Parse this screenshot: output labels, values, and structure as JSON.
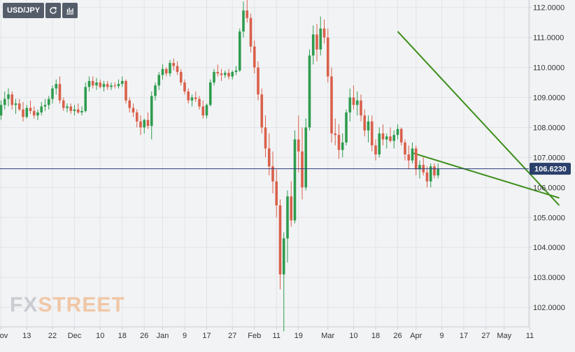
{
  "toolbar": {
    "symbol": "USD/JPY",
    "reload_icon": "reload-icon",
    "indicators_icon": "bar-chart-icon"
  },
  "watermark": {
    "part1": "FX",
    "part2": "STREET"
  },
  "chart_data": {
    "type": "candlestick",
    "symbol": "USD/JPY",
    "ylim": [
      101.35,
      112.25
    ],
    "y_ticks": [
      102,
      103,
      104,
      105,
      106,
      107,
      108,
      109,
      110,
      111,
      112
    ],
    "y_tick_labels": [
      "102.0000",
      "103.0000",
      "104.0000",
      "105.0000",
      "106.0000",
      "107.0000",
      "108.0000",
      "109.0000",
      "110.0000",
      "111.0000",
      "112.0000"
    ],
    "x_labels": [
      {
        "label": "Nov",
        "index": 0
      },
      {
        "label": "13",
        "index": 7
      },
      {
        "label": "22",
        "index": 14
      },
      {
        "label": "Dec",
        "index": 20
      },
      {
        "label": "10",
        "index": 27
      },
      {
        "label": "18",
        "index": 33
      },
      {
        "label": "26",
        "index": 39
      },
      {
        "label": "Jan",
        "index": 44
      },
      {
        "label": "9",
        "index": 50
      },
      {
        "label": "17",
        "index": 56
      },
      {
        "label": "27",
        "index": 63
      },
      {
        "label": "Feb",
        "index": 69
      },
      {
        "label": "11",
        "index": 75
      },
      {
        "label": "19",
        "index": 81
      },
      {
        "label": "Mar",
        "index": 89
      },
      {
        "label": "10",
        "index": 96
      },
      {
        "label": "18",
        "index": 102
      },
      {
        "label": "26",
        "index": 108
      },
      {
        "label": "Apr",
        "index": 113
      },
      {
        "label": "9",
        "index": 120
      },
      {
        "label": "17",
        "index": 126
      },
      {
        "label": "27",
        "index": 132
      },
      {
        "label": "May",
        "index": 137
      },
      {
        "label": "11",
        "index": 144
      }
    ],
    "current_price": 106.623,
    "current_price_label": "106.6230",
    "colors": {
      "up": "#2e9c4f",
      "down": "#d9604b",
      "trendline": "#3d8f1a",
      "price_line": "#2a3a7a",
      "price_tag": "#2a3f6a"
    },
    "trendlines": [
      {
        "from": [
          108,
          111.2
        ],
        "to": [
          152,
          105.4
        ]
      },
      {
        "from": [
          112,
          107.15
        ],
        "to": [
          152,
          105.65
        ]
      }
    ],
    "candles": [
      [
        108.4,
        108.9,
        108.25,
        108.75
      ],
      [
        108.75,
        109.2,
        108.6,
        108.95
      ],
      [
        108.95,
        109.3,
        108.7,
        109.1
      ],
      [
        109.1,
        109.2,
        108.6,
        108.75
      ],
      [
        108.75,
        108.95,
        108.45,
        108.8
      ],
      [
        108.8,
        108.95,
        108.55,
        108.6
      ],
      [
        108.6,
        108.85,
        108.2,
        108.35
      ],
      [
        108.35,
        108.75,
        108.3,
        108.65
      ],
      [
        108.65,
        108.9,
        108.45,
        108.55
      ],
      [
        108.55,
        108.7,
        108.3,
        108.4
      ],
      [
        108.4,
        108.6,
        108.25,
        108.5
      ],
      [
        108.5,
        108.85,
        108.4,
        108.7
      ],
      [
        108.7,
        108.95,
        108.55,
        108.75
      ],
      [
        108.75,
        109.05,
        108.6,
        108.95
      ],
      [
        108.95,
        109.4,
        108.8,
        109.3
      ],
      [
        109.3,
        109.6,
        109.1,
        109.45
      ],
      [
        109.45,
        109.7,
        108.8,
        108.9
      ],
      [
        108.9,
        109.0,
        108.55,
        108.65
      ],
      [
        108.65,
        108.8,
        108.5,
        108.7
      ],
      [
        108.7,
        108.8,
        108.45,
        108.55
      ],
      [
        108.55,
        108.75,
        108.4,
        108.6
      ],
      [
        108.6,
        108.8,
        108.45,
        108.5
      ],
      [
        108.5,
        108.7,
        108.4,
        108.55
      ],
      [
        108.55,
        109.5,
        108.5,
        109.35
      ],
      [
        109.35,
        109.7,
        109.2,
        109.55
      ],
      [
        109.55,
        109.7,
        109.3,
        109.4
      ],
      [
        109.4,
        109.65,
        109.25,
        109.5
      ],
      [
        109.5,
        109.6,
        109.3,
        109.35
      ],
      [
        109.35,
        109.55,
        109.2,
        109.45
      ],
      [
        109.45,
        109.55,
        109.25,
        109.35
      ],
      [
        109.35,
        109.5,
        109.25,
        109.4
      ],
      [
        109.4,
        109.5,
        109.3,
        109.38
      ],
      [
        109.38,
        109.6,
        109.3,
        109.45
      ],
      [
        109.45,
        109.7,
        109.35,
        109.55
      ],
      [
        109.55,
        109.6,
        108.8,
        108.9
      ],
      [
        108.9,
        109.0,
        108.5,
        108.65
      ],
      [
        108.65,
        108.8,
        108.35,
        108.5
      ],
      [
        108.5,
        108.6,
        108.0,
        108.2
      ],
      [
        108.2,
        108.4,
        107.75,
        108.0
      ],
      [
        108.0,
        108.3,
        107.8,
        108.25
      ],
      [
        108.25,
        108.5,
        107.95,
        108.05
      ],
      [
        108.05,
        109.2,
        107.6,
        109.05
      ],
      [
        109.05,
        109.5,
        108.9,
        109.4
      ],
      [
        109.4,
        109.85,
        109.25,
        109.75
      ],
      [
        109.75,
        110.1,
        109.6,
        109.95
      ],
      [
        109.95,
        110.0,
        109.7,
        109.8
      ],
      [
        109.8,
        110.25,
        109.7,
        110.15
      ],
      [
        110.15,
        110.3,
        109.9,
        110.05
      ],
      [
        110.05,
        110.2,
        109.75,
        109.85
      ],
      [
        109.85,
        109.95,
        109.4,
        109.5
      ],
      [
        109.5,
        109.6,
        109.1,
        109.2
      ],
      [
        109.2,
        109.3,
        108.8,
        108.9
      ],
      [
        108.9,
        109.1,
        108.7,
        109.0
      ],
      [
        109.0,
        109.2,
        108.85,
        108.95
      ],
      [
        108.95,
        109.05,
        108.6,
        108.7
      ],
      [
        108.7,
        108.9,
        108.3,
        108.4
      ],
      [
        108.4,
        108.8,
        108.3,
        108.75
      ],
      [
        108.75,
        109.6,
        108.7,
        109.5
      ],
      [
        109.5,
        109.95,
        109.4,
        109.85
      ],
      [
        109.85,
        110.1,
        109.7,
        109.8
      ],
      [
        109.8,
        109.95,
        109.55,
        109.75
      ],
      [
        109.75,
        109.9,
        109.65,
        109.82
      ],
      [
        109.82,
        109.95,
        109.6,
        109.7
      ],
      [
        109.7,
        109.9,
        109.6,
        109.85
      ],
      [
        109.85,
        110.05,
        109.75,
        109.9
      ],
      [
        109.9,
        111.3,
        109.85,
        111.2
      ],
      [
        111.2,
        112.2,
        111.0,
        111.9
      ],
      [
        111.9,
        112.25,
        111.5,
        111.65
      ],
      [
        111.65,
        111.8,
        110.5,
        110.7
      ],
      [
        110.7,
        110.9,
        109.8,
        110.0
      ],
      [
        110.0,
        110.2,
        108.9,
        109.1
      ],
      [
        109.1,
        109.3,
        107.8,
        108.0
      ],
      [
        108.0,
        108.4,
        107.0,
        107.3
      ],
      [
        107.3,
        107.8,
        106.4,
        106.7
      ],
      [
        106.7,
        107.2,
        105.8,
        106.2
      ],
      [
        106.2,
        106.6,
        105.0,
        105.4
      ],
      [
        105.4,
        105.6,
        102.6,
        103.1
      ],
      [
        103.1,
        104.5,
        101.2,
        104.3
      ],
      [
        104.3,
        105.9,
        103.5,
        105.7
      ],
      [
        105.7,
        106.2,
        104.7,
        104.9
      ],
      [
        104.9,
        107.9,
        104.8,
        107.6
      ],
      [
        107.6,
        108.4,
        106.5,
        107.2
      ],
      [
        107.2,
        108.0,
        105.6,
        106.0
      ],
      [
        106.0,
        108.3,
        105.9,
        108.0
      ],
      [
        108.0,
        110.6,
        107.9,
        110.4
      ],
      [
        110.4,
        111.4,
        110.1,
        111.1
      ],
      [
        111.1,
        111.45,
        110.2,
        110.6
      ],
      [
        110.6,
        111.7,
        110.4,
        111.3
      ],
      [
        111.3,
        111.6,
        110.8,
        111.0
      ],
      [
        111.0,
        111.3,
        109.5,
        109.7
      ],
      [
        109.7,
        110.0,
        107.5,
        107.8
      ],
      [
        107.8,
        108.3,
        107.4,
        107.75
      ],
      [
        107.75,
        108.1,
        106.95,
        107.25
      ],
      [
        107.25,
        107.8,
        107.0,
        107.5
      ],
      [
        107.5,
        108.6,
        107.4,
        108.5
      ],
      [
        108.5,
        109.3,
        108.2,
        109.0
      ],
      [
        109.0,
        109.4,
        108.6,
        108.75
      ],
      [
        108.75,
        109.2,
        108.4,
        108.9
      ],
      [
        108.9,
        109.1,
        108.2,
        108.4
      ],
      [
        108.4,
        108.6,
        107.7,
        107.9
      ],
      [
        107.9,
        108.4,
        107.5,
        108.2
      ],
      [
        108.2,
        108.4,
        107.2,
        107.4
      ],
      [
        107.4,
        107.6,
        106.9,
        107.1
      ],
      [
        107.1,
        108.0,
        107.0,
        107.8
      ],
      [
        107.8,
        108.1,
        107.4,
        107.6
      ],
      [
        107.6,
        107.8,
        107.3,
        107.7
      ],
      [
        107.7,
        108.0,
        107.5,
        107.55
      ],
      [
        107.55,
        107.9,
        107.3,
        107.75
      ],
      [
        107.75,
        108.1,
        107.6,
        107.95
      ],
      [
        107.95,
        108.0,
        107.4,
        107.5
      ],
      [
        107.5,
        107.6,
        106.9,
        107.1
      ],
      [
        107.1,
        107.4,
        106.6,
        106.9
      ],
      [
        106.9,
        107.5,
        106.8,
        107.3
      ],
      [
        107.3,
        107.4,
        106.4,
        106.6
      ],
      [
        106.6,
        106.9,
        106.3,
        106.75
      ],
      [
        106.75,
        107.0,
        106.4,
        106.5
      ],
      [
        106.5,
        106.7,
        106.0,
        106.2
      ],
      [
        106.2,
        106.8,
        106.0,
        106.7
      ],
      [
        106.7,
        106.8,
        106.3,
        106.4
      ],
      [
        106.4,
        106.8,
        106.3,
        106.62
      ]
    ]
  }
}
